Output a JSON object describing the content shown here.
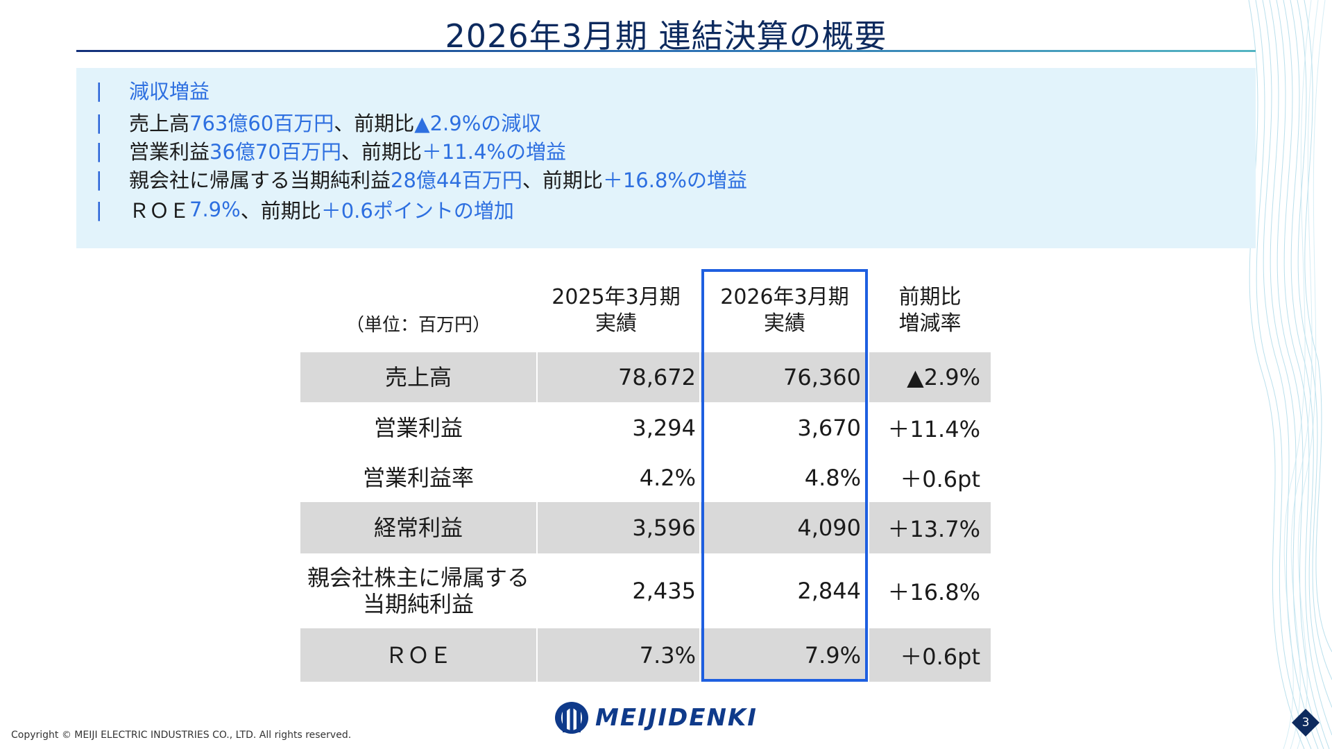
{
  "title": "2026年3月期 連結決算の概要",
  "summary": {
    "marker": "|",
    "lines": [
      [
        {
          "t": "減収増益",
          "c": "blue"
        }
      ],
      [
        {
          "t": "売上高",
          "c": "dark"
        },
        {
          "t": "763億60百万円",
          "c": "blue"
        },
        {
          "t": "、前期比",
          "c": "dark"
        },
        {
          "t": "▲2.9%の減収",
          "c": "blue"
        }
      ],
      [
        {
          "t": "営業利益",
          "c": "dark"
        },
        {
          "t": "36億70百万円",
          "c": "blue"
        },
        {
          "t": "、前期比",
          "c": "dark"
        },
        {
          "t": "＋11.4%の増益",
          "c": "blue"
        }
      ],
      [
        {
          "t": "親会社に帰属する当期純利益",
          "c": "dark"
        },
        {
          "t": "28億44百万円",
          "c": "blue"
        },
        {
          "t": "、前期比",
          "c": "dark"
        },
        {
          "t": "＋16.8%の増益",
          "c": "blue"
        }
      ],
      [
        {
          "t": "ＲＯＥ",
          "c": "dark"
        },
        {
          "t": "7.9%",
          "c": "blue"
        },
        {
          "t": "、前期比",
          "c": "dark"
        },
        {
          "t": "＋0.6ポイントの増加",
          "c": "blue"
        }
      ]
    ]
  },
  "table": {
    "unit_label": "（単位：百万円）",
    "col_prev": "2025年3月期\n実績",
    "col_curr": "2026年3月期\n実績",
    "col_change": "前期比\n増減率",
    "rows": [
      {
        "label": "売上高",
        "prev": "78,672",
        "curr": "76,360",
        "change": "▲2.9%",
        "shaded": true
      },
      {
        "label": "営業利益",
        "prev": "3,294",
        "curr": "3,670",
        "change": "＋11.4%",
        "shaded": false
      },
      {
        "label": "営業利益率",
        "prev": "4.2%",
        "curr": "4.8%",
        "change": "＋0.6pt",
        "shaded": false
      },
      {
        "label": "経常利益",
        "prev": "3,596",
        "curr": "4,090",
        "change": "＋13.7%",
        "shaded": true
      },
      {
        "label": "親会社株主に帰属する\n当期純利益",
        "prev": "2,435",
        "curr": "2,844",
        "change": "＋16.8%",
        "shaded": false
      },
      {
        "label": "ＲＯＥ",
        "prev": "7.3%",
        "curr": "7.9%",
        "change": "＋0.6pt",
        "shaded": true
      }
    ]
  },
  "footer": {
    "copyright": "Copyright © MEIJI ELECTRIC INDUSTRIES CO., LTD. All rights reserved.",
    "logo_text": "MEIJIDENKI",
    "page_number": "3"
  },
  "colors": {
    "title": "#0d2a5e",
    "accent_blue": "#2d6fe0",
    "summary_bg": "#e2f3fb",
    "table_shade": "#d9d9d9",
    "highlight_border": "#1e5fe0",
    "logo": "#0f3a8a"
  },
  "icons": {
    "logo_mark": "meiji-logo-mark-icon",
    "page_badge": "diamond-badge-icon"
  }
}
